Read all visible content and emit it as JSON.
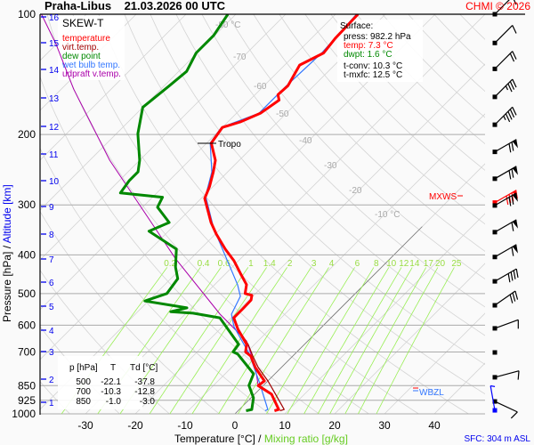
{
  "header": {
    "title": "Praha-Libus    21.03.2026 00 UTC",
    "copyright": "CHMI © 2026"
  },
  "legend": {
    "title": "SKEW-T",
    "items": [
      {
        "label": "temperature",
        "color": "#ff0000"
      },
      {
        "label": "virt.temp.",
        "color": "#a00000"
      },
      {
        "label": "dew point",
        "color": "#008800"
      },
      {
        "label": "wet bulb temp.",
        "color": "#3377ff"
      },
      {
        "label": "udpraft v.temp.",
        "color": "#aa00aa"
      }
    ]
  },
  "surface": {
    "title": "Surface:",
    "press": "press: 982.2 hPa",
    "temp": "temp: 7.3 °C",
    "dwpt": "dwpt: 1.6 °C",
    "tconv": "t-conv: 10.3 °C",
    "tmxfc": "t-mxfc: 12.5 °C"
  },
  "table": {
    "headers": [
      "p [hPa]",
      "T",
      "Td [°C]"
    ],
    "rows": [
      [
        "500",
        "-22.1",
        "-37.8"
      ],
      [
        "700",
        "-10.3",
        "-12.8"
      ],
      [
        "850",
        "-1.0",
        "-3.0"
      ]
    ]
  },
  "annotations": {
    "tropo": "Tropo",
    "mxws": "MXWS",
    "wbzl": "WBZL",
    "sfc": "SFC: 304 m ASL"
  },
  "chart_data": {
    "type": "line",
    "title": "SKEW-T",
    "xlabel": "Temperature [°C]",
    "xlabel2": "Mixing ratio [g/kg]",
    "ylabel": "Pressure [hPa]",
    "ylabel2": "Altitude [km]",
    "y_scale": "log-pressure",
    "ylim": [
      1000,
      100
    ],
    "pressure_ticks": [
      100,
      200,
      300,
      400,
      500,
      600,
      700,
      850,
      925,
      1000
    ],
    "temperature_ticks": [
      -30,
      -20,
      -10,
      0,
      10,
      20,
      30,
      40
    ],
    "altitude_ticks_km": [
      1,
      2,
      3,
      4,
      5,
      6,
      7,
      8,
      9,
      10,
      11,
      12,
      13,
      14,
      15,
      16
    ],
    "isotherm_labels": [
      "-80 °C",
      "-70",
      "-60",
      "-50",
      "-40",
      "-30",
      "-20",
      "-10 °C"
    ],
    "mixing_ratio_labels": [
      "0.2",
      "0.4",
      "0.6",
      "1",
      "1.4",
      "2",
      "3",
      "4",
      "6",
      "8",
      "10",
      "12",
      "14",
      "17",
      "20",
      "25"
    ],
    "grid": true,
    "legend_position": "top-left",
    "series": [
      {
        "name": "temperature",
        "color": "#ff0000",
        "points": [
          [
            982,
            7.3
          ],
          [
            975,
            7.9
          ],
          [
            893,
            3.4
          ],
          [
            850,
            -1.0
          ],
          [
            827,
            -0.7
          ],
          [
            766,
            -5.2
          ],
          [
            717,
            -8.4
          ],
          [
            700,
            -10.3
          ],
          [
            670,
            -11.6
          ],
          [
            614,
            -16.4
          ],
          [
            575,
            -19.5
          ],
          [
            546,
            -19.5
          ],
          [
            519,
            -19.6
          ],
          [
            505,
            -20.4
          ],
          [
            500,
            -22.1
          ],
          [
            475,
            -23.6
          ],
          [
            445,
            -27.1
          ],
          [
            414,
            -30.9
          ],
          [
            387,
            -35
          ],
          [
            355,
            -39.8
          ],
          [
            332,
            -43.2
          ],
          [
            289,
            -49.3
          ],
          [
            270,
            -50.7
          ],
          [
            248,
            -52.9
          ],
          [
            232,
            -54.8
          ],
          [
            210,
            -59.1
          ],
          [
            192,
            -60
          ],
          [
            186,
            -57.5
          ],
          [
            177,
            -55.2
          ],
          [
            164,
            -54.1
          ],
          [
            159,
            -55.4
          ],
          [
            151,
            -55.2
          ],
          [
            134,
            -57
          ],
          [
            125,
            -54.6
          ],
          [
            115,
            -55.2
          ],
          [
            100,
            -55.5
          ]
        ]
      },
      {
        "name": "virt.temp.",
        "color": "#a00000",
        "points": [
          [
            982,
            8.4
          ],
          [
            975,
            9.0
          ],
          [
            893,
            4.2
          ],
          [
            827,
            0.0
          ],
          [
            766,
            -4.6
          ],
          [
            717,
            -8.0
          ],
          [
            670,
            -11.3
          ],
          [
            614,
            -16.3
          ]
        ]
      },
      {
        "name": "dew point",
        "color": "#008800",
        "points": [
          [
            982,
            1.6
          ],
          [
            975,
            2.5
          ],
          [
            912,
            0.5
          ],
          [
            849,
            -2.9
          ],
          [
            794,
            -4.3
          ],
          [
            709,
            -11.4
          ],
          [
            700,
            -12.8
          ],
          [
            670,
            -13.2
          ],
          [
            575,
            -22.3
          ],
          [
            560,
            -28.6
          ],
          [
            555,
            -33.4
          ],
          [
            543,
            -30.9
          ],
          [
            522,
            -40.7
          ],
          [
            500,
            -37.8
          ],
          [
            459,
            -38.6
          ],
          [
            429,
            -41.4
          ],
          [
            387,
            -44.8
          ],
          [
            349,
            -53.9
          ],
          [
            332,
            -51.6
          ],
          [
            304,
            -57
          ],
          [
            287,
            -58
          ],
          [
            280,
            -67.3
          ],
          [
            261,
            -68
          ],
          [
            248,
            -68
          ],
          [
            232,
            -70
          ],
          [
            199,
            -75.7
          ],
          [
            171,
            -80
          ],
          [
            151,
            -79
          ],
          [
            139,
            -78.4
          ],
          [
            125,
            -80.2
          ],
          [
            113,
            -80.2
          ],
          [
            100,
            -81.6
          ]
        ]
      },
      {
        "name": "wet bulb temp.",
        "color": "#3377ff",
        "points": [
          [
            982,
            5.4
          ],
          [
            975,
            5.7
          ],
          [
            836,
            -1.3
          ],
          [
            706,
            -9.3
          ],
          [
            605,
            -17.7
          ],
          [
            563,
            -20.7
          ],
          [
            508,
            -22.5
          ],
          [
            475,
            -25.4
          ],
          [
            401,
            -33.8
          ],
          [
            344,
            -41.4
          ],
          [
            285,
            -49.6
          ],
          [
            248,
            -53.2
          ],
          [
            210,
            -59.3
          ],
          [
            192,
            -60.2
          ],
          [
            177,
            -55.5
          ],
          [
            151,
            -55.5
          ],
          [
            125,
            -55
          ],
          [
            100,
            -55.8
          ]
        ]
      },
      {
        "name": "udpraft v.temp.",
        "color": "#aa00aa",
        "points": [
          [
            850,
            -1.0
          ],
          [
            760,
            -5.5
          ],
          [
            657,
            -12.3
          ],
          [
            563,
            -23
          ],
          [
            408,
            -43.2
          ],
          [
            232,
            -76
          ],
          [
            154,
            -97.5
          ],
          [
            119,
            -110
          ],
          [
            100,
            -119
          ]
        ]
      }
    ],
    "wind": [
      {
        "p": 100,
        "dir": 225,
        "kt": 10
      },
      {
        "p": 118,
        "dir": 225,
        "kt": 10
      },
      {
        "p": 137,
        "dir": 225,
        "kt": 20
      },
      {
        "p": 161,
        "dir": 225,
        "kt": 35
      },
      {
        "p": 189,
        "dir": 225,
        "kt": 45
      },
      {
        "p": 221,
        "dir": 240,
        "kt": 70
      },
      {
        "p": 258,
        "dir": 240,
        "kt": 70
      },
      {
        "p": 296,
        "dir": 240,
        "kt": 80,
        "color": "#ff0000"
      },
      {
        "p": 301,
        "dir": 240,
        "kt": 70
      },
      {
        "p": 351,
        "dir": 240,
        "kt": 60
      },
      {
        "p": 405,
        "dir": 240,
        "kt": 60
      },
      {
        "p": 466,
        "dir": 240,
        "kt": 40
      },
      {
        "p": 535,
        "dir": 235,
        "kt": 30
      },
      {
        "p": 611,
        "dir": 250,
        "kt": 10
      },
      {
        "p": 702,
        "dir": 0,
        "kt": 0
      },
      {
        "p": 810,
        "dir": 255,
        "kt": 10
      },
      {
        "p": 931,
        "dir": 295,
        "kt": 10
      },
      {
        "p": 980,
        "dir": 170,
        "kt": 3,
        "color": "#0000ff"
      }
    ]
  }
}
